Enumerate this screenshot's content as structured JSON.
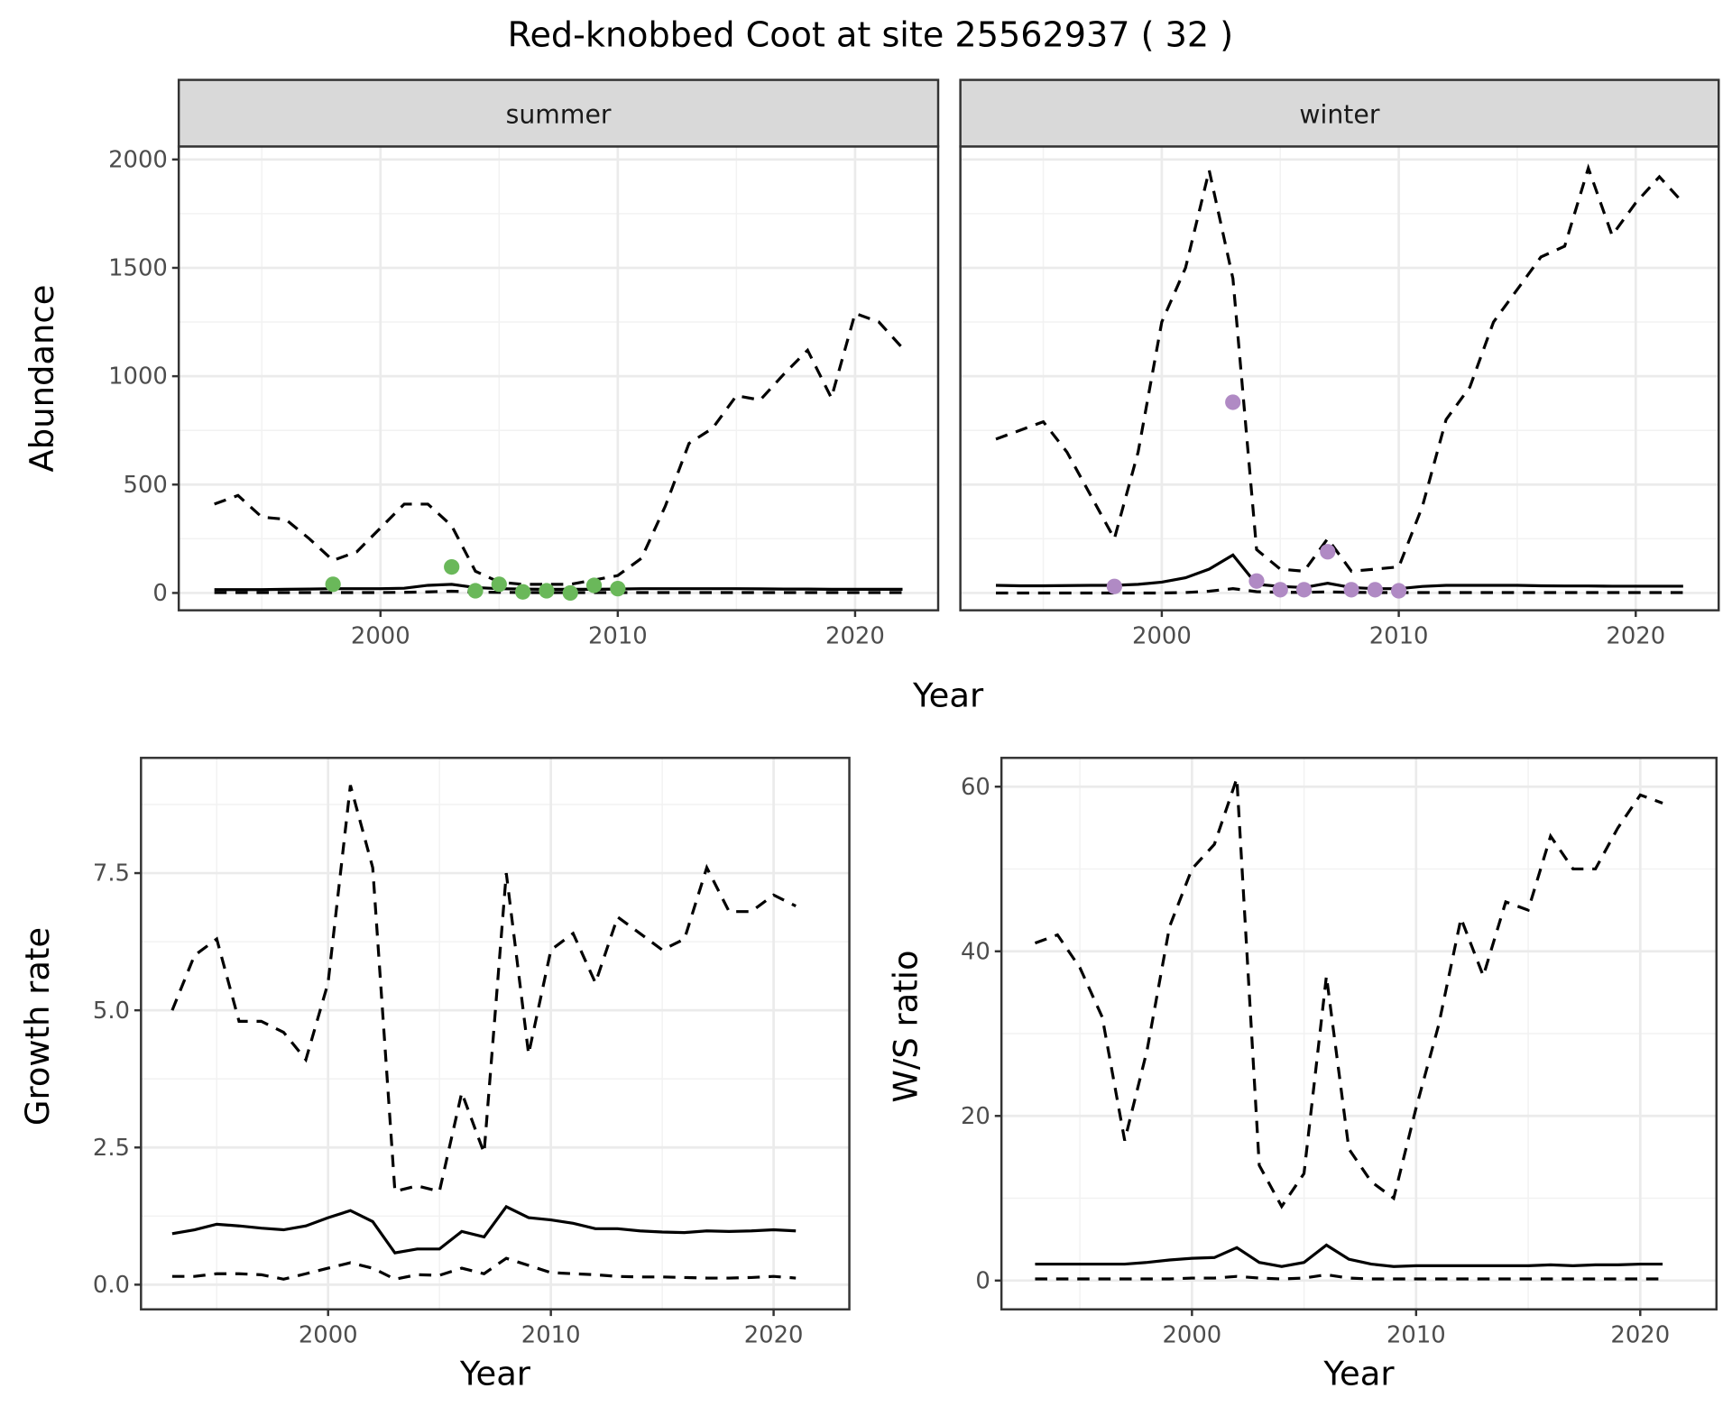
{
  "title": "Red-knobbed Coot at site 25562937 ( 32 )",
  "chart_data": [
    {
      "type": "line",
      "facet": "summer",
      "xlabel": "Year",
      "ylabel": "Abundance",
      "ylim": [
        -80,
        2060
      ],
      "xlim": [
        1991.5,
        2023.5
      ],
      "yticks": [
        0,
        500,
        1000,
        1500,
        2000
      ],
      "xticks": [
        2000,
        2010,
        2020
      ],
      "grid": true,
      "point_color": "#6ab85a",
      "x": [
        1993,
        1994,
        1995,
        1996,
        1997,
        1998,
        1999,
        2000,
        2001,
        2002,
        2003,
        2004,
        2005,
        2006,
        2007,
        2008,
        2009,
        2010,
        2011,
        2012,
        2013,
        2014,
        2015,
        2016,
        2017,
        2018,
        2019,
        2020,
        2021,
        2022
      ],
      "series": [
        {
          "name": "upper",
          "style": "dashed",
          "values": [
            410,
            450,
            350,
            340,
            250,
            150,
            190,
            300,
            410,
            410,
            310,
            100,
            50,
            40,
            40,
            40,
            60,
            80,
            160,
            400,
            690,
            760,
            910,
            890,
            1010,
            1120,
            900,
            1290,
            1250,
            1130
          ]
        },
        {
          "name": "mean",
          "style": "solid",
          "values": [
            15,
            15,
            15,
            17,
            18,
            20,
            20,
            20,
            22,
            35,
            40,
            25,
            20,
            18,
            17,
            17,
            17,
            18,
            20,
            20,
            20,
            20,
            20,
            19,
            18,
            18,
            17,
            17,
            17,
            17
          ]
        },
        {
          "name": "lower",
          "style": "dashed",
          "values": [
            2,
            2,
            2,
            2,
            2,
            2,
            2,
            2,
            3,
            5,
            8,
            4,
            3,
            2,
            2,
            2,
            2,
            2,
            2,
            2,
            2,
            2,
            2,
            2,
            2,
            2,
            2,
            2,
            2,
            2
          ]
        }
      ],
      "points": {
        "x": [
          1998,
          2003,
          2004,
          2005,
          2006,
          2007,
          2008,
          2009,
          2010
        ],
        "y": [
          40,
          120,
          10,
          40,
          5,
          10,
          0,
          35,
          20
        ]
      }
    },
    {
      "type": "line",
      "facet": "winter",
      "xlabel": "Year",
      "ylabel": "Abundance",
      "ylim": [
        -80,
        2060
      ],
      "xlim": [
        1991.5,
        2023.5
      ],
      "yticks": [
        0,
        500,
        1000,
        1500,
        2000
      ],
      "xticks": [
        2000,
        2010,
        2020
      ],
      "grid": true,
      "point_color": "#b08ac4",
      "x": [
        1993,
        1994,
        1995,
        1996,
        1997,
        1998,
        1999,
        2000,
        2001,
        2002,
        2003,
        2004,
        2005,
        2006,
        2007,
        2008,
        2009,
        2010,
        2011,
        2012,
        2013,
        2014,
        2015,
        2016,
        2017,
        2018,
        2019,
        2020,
        2021,
        2022
      ],
      "series": [
        {
          "name": "upper",
          "style": "dashed",
          "values": [
            710,
            750,
            790,
            650,
            450,
            250,
            650,
            1250,
            1500,
            1950,
            1450,
            200,
            110,
            100,
            250,
            100,
            110,
            120,
            400,
            800,
            950,
            1250,
            1400,
            1550,
            1600,
            1960,
            1650,
            1800,
            1920,
            1800
          ]
        },
        {
          "name": "mean",
          "style": "solid",
          "values": [
            35,
            33,
            33,
            34,
            35,
            35,
            40,
            50,
            70,
            110,
            175,
            40,
            30,
            25,
            45,
            25,
            20,
            20,
            30,
            35,
            35,
            35,
            35,
            33,
            32,
            32,
            31,
            31,
            31,
            31
          ]
        },
        {
          "name": "lower",
          "style": "dashed",
          "values": [
            0,
            0,
            0,
            0,
            0,
            0,
            0,
            0,
            2,
            8,
            20,
            6,
            3,
            3,
            5,
            3,
            2,
            2,
            2,
            2,
            2,
            2,
            2,
            2,
            2,
            2,
            2,
            2,
            2,
            2
          ]
        }
      ],
      "points": {
        "x": [
          1998,
          2003,
          2004,
          2005,
          2006,
          2007,
          2008,
          2009,
          2010
        ],
        "y": [
          30,
          880,
          55,
          15,
          15,
          190,
          15,
          15,
          10
        ]
      }
    },
    {
      "type": "line",
      "facet": "growth",
      "xlabel": "Year",
      "ylabel": "Growth rate",
      "ylim": [
        -0.45,
        9.6
      ],
      "xlim": [
        1991.6,
        2023.4
      ],
      "yticks": [
        0.0,
        2.5,
        5.0,
        7.5
      ],
      "ytick_labels": [
        "0.0",
        "2.5",
        "5.0",
        "7.5"
      ],
      "xticks": [
        2000,
        2010,
        2020
      ],
      "grid": true,
      "x": [
        1993,
        1994,
        1995,
        1996,
        1997,
        1998,
        1999,
        2000,
        2001,
        2002,
        2003,
        2004,
        2005,
        2006,
        2007,
        2008,
        2009,
        2010,
        2011,
        2012,
        2013,
        2014,
        2015,
        2016,
        2017,
        2018,
        2019,
        2020,
        2021
      ],
      "series": [
        {
          "name": "upper",
          "style": "dashed",
          "values": [
            5.0,
            6.0,
            6.3,
            4.8,
            4.8,
            4.6,
            4.1,
            5.5,
            9.1,
            7.6,
            1.7,
            1.8,
            1.7,
            3.5,
            2.4,
            7.5,
            4.2,
            6.1,
            6.4,
            5.5,
            6.7,
            6.4,
            6.1,
            6.3,
            7.6,
            6.8,
            6.8,
            7.1,
            6.9
          ]
        },
        {
          "name": "mean",
          "style": "solid",
          "values": [
            0.93,
            1.0,
            1.1,
            1.07,
            1.03,
            1.0,
            1.07,
            1.22,
            1.35,
            1.15,
            0.58,
            0.65,
            0.65,
            0.97,
            0.87,
            1.42,
            1.22,
            1.18,
            1.12,
            1.02,
            1.02,
            0.98,
            0.96,
            0.95,
            0.98,
            0.97,
            0.98,
            1.0,
            0.98
          ]
        },
        {
          "name": "lower",
          "style": "dashed",
          "values": [
            0.15,
            0.15,
            0.2,
            0.2,
            0.18,
            0.1,
            0.2,
            0.3,
            0.4,
            0.3,
            0.1,
            0.18,
            0.17,
            0.3,
            0.2,
            0.48,
            0.35,
            0.22,
            0.2,
            0.18,
            0.15,
            0.14,
            0.14,
            0.13,
            0.12,
            0.12,
            0.13,
            0.15,
            0.12
          ]
        }
      ]
    },
    {
      "type": "line",
      "facet": "ratio",
      "xlabel": "Year",
      "ylabel": "W/S ratio",
      "ylim": [
        -3.5,
        63.5
      ],
      "xlim": [
        1991.5,
        2023.4
      ],
      "yticks": [
        0,
        20,
        40,
        60
      ],
      "xticks": [
        2000,
        2010,
        2020
      ],
      "grid": true,
      "x": [
        1993,
        1994,
        1995,
        1996,
        1997,
        1998,
        1999,
        2000,
        2001,
        2002,
        2003,
        2004,
        2005,
        2006,
        2007,
        2008,
        2009,
        2010,
        2011,
        2012,
        2013,
        2014,
        2015,
        2016,
        2017,
        2018,
        2019,
        2020,
        2021
      ],
      "series": [
        {
          "name": "upper",
          "style": "dashed",
          "values": [
            41,
            42,
            38,
            32,
            17,
            28,
            43,
            50,
            53,
            61,
            14,
            9,
            13,
            37,
            16,
            12,
            10,
            21,
            31,
            44,
            37,
            46,
            45,
            54,
            50,
            50,
            55,
            59,
            58
          ]
        },
        {
          "name": "mean",
          "style": "solid",
          "values": [
            2,
            2,
            2,
            2,
            2,
            2.2,
            2.5,
            2.7,
            2.8,
            4,
            2.2,
            1.7,
            2.2,
            4.3,
            2.6,
            2,
            1.7,
            1.8,
            1.8,
            1.8,
            1.8,
            1.8,
            1.8,
            1.9,
            1.8,
            1.9,
            1.9,
            2,
            2
          ]
        },
        {
          "name": "lower",
          "style": "dashed",
          "values": [
            0.2,
            0.2,
            0.2,
            0.2,
            0.2,
            0.2,
            0.2,
            0.3,
            0.3,
            0.5,
            0.3,
            0.2,
            0.3,
            0.7,
            0.3,
            0.2,
            0.2,
            0.2,
            0.2,
            0.2,
            0.2,
            0.2,
            0.2,
            0.2,
            0.2,
            0.2,
            0.2,
            0.2,
            0.2
          ]
        }
      ]
    }
  ],
  "strips": [
    "summer",
    "winter"
  ]
}
